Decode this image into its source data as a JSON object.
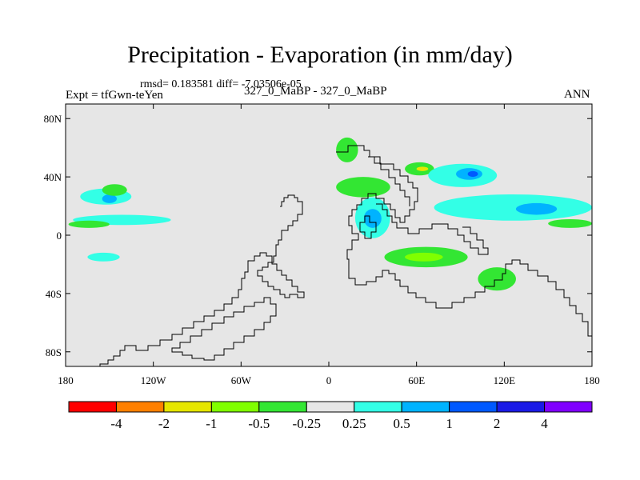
{
  "chart_data": {
    "type": "heatmap",
    "title": "Precipitation - Evaporation (in mm/day)",
    "stats_text": "rmsd= 0.183581  diff= -7.03506e-05",
    "left_label": "Expt = tfGwn-teYen",
    "center_label": "327_0_MaBP - 327_0_MaBP",
    "right_label": "ANN",
    "x_range": [
      -180,
      180
    ],
    "y_range": [
      -90,
      90
    ],
    "x_ticks": [
      {
        "value": -180,
        "label": "180"
      },
      {
        "value": -120,
        "label": "120W"
      },
      {
        "value": -60,
        "label": "60W"
      },
      {
        "value": 0,
        "label": "0"
      },
      {
        "value": 60,
        "label": "60E"
      },
      {
        "value": 120,
        "label": "120E"
      },
      {
        "value": 180,
        "label": "180"
      }
    ],
    "y_ticks": [
      {
        "value": 80,
        "label": "80N"
      },
      {
        "value": 40,
        "label": "40N"
      },
      {
        "value": 0,
        "label": "0"
      },
      {
        "value": -40,
        "label": "40S"
      },
      {
        "value": -80,
        "label": "80S"
      }
    ],
    "background_color": "#e6e6e6",
    "colorbar": {
      "colors": [
        "#ff0000",
        "#ff8000",
        "#e6e600",
        "#80ff00",
        "#33e633",
        "#e6e6e6",
        "#33ffe6",
        "#00b3ff",
        "#0059ff",
        "#1a1ae6",
        "#8000ff"
      ],
      "labels": [
        "-4",
        "-2",
        "-1",
        "-0.5",
        "-0.25",
        "0.25",
        "0.5",
        "1",
        "2",
        "4"
      ]
    },
    "anomaly_regions": [
      {
        "level": "0.5",
        "color": "#33ffe6",
        "lon": [
          -170,
          -135
        ],
        "lat": [
          21,
          32
        ]
      },
      {
        "level": "1",
        "color": "#00b3ff",
        "lon": [
          -155,
          -145
        ],
        "lat": [
          22,
          28
        ]
      },
      {
        "level": "0.5",
        "color": "#33ffe6",
        "lon": [
          -175,
          -108
        ],
        "lat": [
          7,
          14
        ]
      },
      {
        "level": "-0.25",
        "color": "#33e633",
        "lon": [
          -178,
          -150
        ],
        "lat": [
          5,
          10
        ]
      },
      {
        "level": "0.5",
        "color": "#33ffe6",
        "lon": [
          -165,
          -143
        ],
        "lat": [
          -18,
          -12
        ]
      },
      {
        "level": "-0.25",
        "color": "#33e633",
        "lon": [
          -155,
          -138
        ],
        "lat": [
          27,
          35
        ]
      },
      {
        "level": "-0.25",
        "color": "#33e633",
        "lon": [
          5,
          42
        ],
        "lat": [
          26,
          40
        ]
      },
      {
        "level": "0.5",
        "color": "#33ffe6",
        "lon": [
          18,
          42
        ],
        "lat": [
          -2,
          26
        ]
      },
      {
        "level": "1",
        "color": "#00b3ff",
        "lon": [
          24,
          36
        ],
        "lat": [
          5,
          18
        ]
      },
      {
        "level": "-0.25",
        "color": "#33e633",
        "lon": [
          38,
          95
        ],
        "lat": [
          -22,
          -8
        ]
      },
      {
        "level": "-0.5",
        "color": "#80ff00",
        "lon": [
          52,
          78
        ],
        "lat": [
          -18,
          -12
        ]
      },
      {
        "level": "-0.25",
        "color": "#33e633",
        "lon": [
          52,
          72
        ],
        "lat": [
          41,
          50
        ]
      },
      {
        "level": "-1",
        "color": "#e6e600",
        "lon": [
          60,
          68
        ],
        "lat": [
          44,
          47
        ]
      },
      {
        "level": "0.5",
        "color": "#33ffe6",
        "lon": [
          68,
          115
        ],
        "lat": [
          33,
          49
        ]
      },
      {
        "level": "1",
        "color": "#00b3ff",
        "lon": [
          87,
          105
        ],
        "lat": [
          38,
          46
        ]
      },
      {
        "level": "2",
        "color": "#0059ff",
        "lon": [
          95,
          102
        ],
        "lat": [
          40,
          44
        ]
      },
      {
        "level": "0.5",
        "color": "#33ffe6",
        "lon": [
          72,
          180
        ],
        "lat": [
          10,
          28
        ]
      },
      {
        "level": "1",
        "color": "#00b3ff",
        "lon": [
          128,
          156
        ],
        "lat": [
          14,
          22
        ]
      },
      {
        "level": "-0.25",
        "color": "#33e633",
        "lon": [
          150,
          180
        ],
        "lat": [
          5,
          11
        ]
      },
      {
        "level": "-0.25",
        "color": "#33e633",
        "lon": [
          102,
          128
        ],
        "lat": [
          -38,
          -22
        ]
      },
      {
        "level": "-0.25",
        "color": "#33e633",
        "lon": [
          5,
          20
        ],
        "lat": [
          50,
          67
        ]
      }
    ]
  }
}
